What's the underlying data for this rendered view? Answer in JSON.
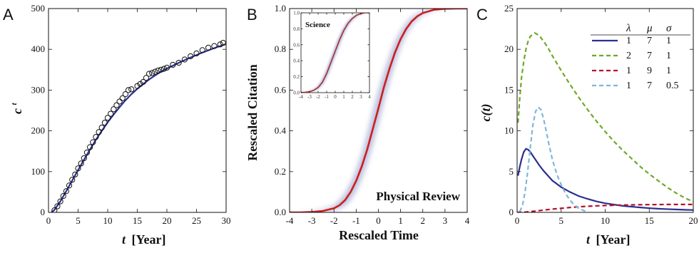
{
  "chart_data": [
    {
      "panel": "A",
      "type": "scatter",
      "xlabel": "t",
      "xlabel_unit": "[Year]",
      "ylabel": "c",
      "ylabel_superscript": "t",
      "xlim": [
        0,
        30
      ],
      "ylim": [
        0,
        500
      ],
      "xticks": [
        0,
        5,
        10,
        15,
        20,
        25,
        30
      ],
      "yticks": [
        0,
        100,
        200,
        300,
        400,
        500
      ],
      "series": [
        {
          "kind": "points",
          "color": "#111111",
          "x": [
            1,
            1.5,
            2,
            2.5,
            3,
            3.5,
            4,
            4.5,
            5,
            5.5,
            6,
            6.5,
            7,
            7.5,
            8,
            8.5,
            9,
            9.5,
            10,
            10.5,
            11,
            11.5,
            12,
            12.5,
            13,
            13.5,
            14,
            15,
            15.5,
            16,
            16.5,
            17,
            17.5,
            18,
            18.5,
            19,
            19.5,
            20,
            21,
            22,
            23,
            24,
            25,
            26,
            27,
            28,
            29,
            29.5
          ],
          "y": [
            5,
            15,
            27,
            40,
            52,
            66,
            80,
            93,
            108,
            120,
            133,
            147,
            160,
            172,
            185,
            197,
            208,
            220,
            232,
            242,
            253,
            263,
            272,
            280,
            290,
            300,
            302,
            310,
            315,
            320,
            330,
            340,
            342,
            345,
            348,
            350,
            352,
            355,
            362,
            367,
            375,
            383,
            390,
            398,
            404,
            408,
            412,
            416
          ]
        },
        {
          "kind": "fit",
          "color": "#2a2f8f",
          "x": [
            0.5,
            1,
            2,
            3,
            4,
            5,
            6,
            7,
            8,
            9,
            10,
            11,
            12,
            13,
            14,
            15,
            16,
            17,
            18,
            19,
            20,
            22,
            24,
            26,
            28,
            30
          ],
          "y": [
            0,
            6,
            27,
            52,
            78,
            104,
            129,
            154,
            178,
            200,
            221,
            240,
            258,
            275,
            290,
            303,
            315,
            326,
            336,
            345,
            353,
            367,
            380,
            392,
            403,
            413
          ]
        }
      ]
    },
    {
      "panel": "B",
      "type": "line",
      "xlabel": "Rescaled Time",
      "ylabel": "Rescaled Citation",
      "xlim": [
        -4,
        4
      ],
      "ylim": [
        0,
        1
      ],
      "xticks": [
        -4,
        -3,
        -2,
        -1,
        0,
        1,
        2,
        3,
        4
      ],
      "yticks": [
        0.0,
        0.2,
        0.4,
        0.6,
        0.8,
        1.0
      ],
      "annotation": "Physical Review",
      "series": [
        {
          "kind": "band",
          "color": "#8a93c8",
          "x": [
            -4,
            -3.5,
            -3,
            -2.5,
            -2,
            -1.75,
            -1.5,
            -1.25,
            -1,
            -0.75,
            -0.5,
            -0.25,
            0,
            0.25,
            0.5,
            0.75,
            1,
            1.25,
            1.5,
            1.75,
            2,
            2.5,
            3,
            3.5,
            4
          ],
          "y_low": [
            0,
            0,
            0,
            0.002,
            0.01,
            0.018,
            0.032,
            0.06,
            0.105,
            0.165,
            0.24,
            0.33,
            0.43,
            0.54,
            0.64,
            0.73,
            0.81,
            0.87,
            0.915,
            0.945,
            0.968,
            0.99,
            0.998,
            1,
            1
          ],
          "y_high": [
            0,
            0.001,
            0.005,
            0.015,
            0.035,
            0.06,
            0.095,
            0.145,
            0.21,
            0.29,
            0.39,
            0.5,
            0.6,
            0.69,
            0.77,
            0.84,
            0.89,
            0.93,
            0.958,
            0.975,
            0.988,
            0.997,
            1,
            1,
            1
          ]
        },
        {
          "kind": "curve",
          "color": "#cc1f1f",
          "x": [
            -4,
            -3.5,
            -3,
            -2.5,
            -2,
            -1.75,
            -1.5,
            -1.25,
            -1,
            -0.75,
            -0.5,
            -0.25,
            0,
            0.25,
            0.5,
            0.75,
            1,
            1.25,
            1.5,
            1.75,
            2,
            2.5,
            3,
            3.5,
            4
          ],
          "y": [
            0,
            0,
            0.002,
            0.007,
            0.02,
            0.035,
            0.06,
            0.1,
            0.155,
            0.225,
            0.31,
            0.41,
            0.51,
            0.615,
            0.705,
            0.785,
            0.85,
            0.9,
            0.937,
            0.962,
            0.978,
            0.994,
            0.999,
            1,
            1
          ]
        }
      ],
      "inset": {
        "annotation": "Science",
        "xlim": [
          -4,
          4
        ],
        "ylim": [
          0,
          1
        ],
        "xticks": [
          -4,
          -3,
          -2,
          -1,
          0,
          1,
          2,
          3,
          4
        ],
        "yticks": [
          0.0,
          0.2,
          0.4,
          0.6,
          0.8,
          1.0
        ],
        "band_color": "#8a93c8",
        "curve_color": "#a33030",
        "x": [
          -4,
          -3.5,
          -3,
          -2.5,
          -2,
          -1.5,
          -1,
          -0.5,
          0,
          0.5,
          1,
          1.5,
          2,
          2.5,
          3,
          3.5,
          4
        ],
        "y": [
          0.002,
          0.005,
          0.012,
          0.03,
          0.065,
          0.13,
          0.24,
          0.38,
          0.52,
          0.66,
          0.78,
          0.87,
          0.93,
          0.97,
          0.99,
          1,
          1
        ]
      }
    },
    {
      "panel": "C",
      "type": "line",
      "xlabel": "t",
      "xlabel_unit": "[Year]",
      "ylabel": "c(t)",
      "xlim": [
        0,
        20
      ],
      "ylim": [
        0,
        25
      ],
      "xticks": [
        0,
        5,
        10,
        15,
        20
      ],
      "yticks": [
        0,
        5,
        10,
        15,
        20,
        25
      ],
      "legend": {
        "position": "top-right",
        "headers": [
          "λ",
          "μ",
          "σ"
        ],
        "rows": [
          {
            "values": [
              "1",
              "7",
              "1"
            ],
            "color": "#2a2f8f",
            "dash": "solid"
          },
          {
            "values": [
              "2",
              "7",
              "1"
            ],
            "color": "#6ea82a",
            "dash": "dashed"
          },
          {
            "values": [
              "1",
              "9",
              "1"
            ],
            "color": "#b3122a",
            "dash": "dashed"
          },
          {
            "values": [
              "1",
              "7",
              "0.5"
            ],
            "color": "#7fb6d8",
            "dash": "dashed"
          }
        ]
      },
      "series": [
        {
          "lambda": 1,
          "mu": 7,
          "sigma": 1,
          "x": [
            0.1,
            0.3,
            0.5,
            0.75,
            1,
            1.25,
            1.5,
            2,
            2.5,
            3,
            3.5,
            4,
            5,
            6,
            7,
            8,
            9,
            10,
            11,
            12,
            13,
            14,
            15,
            16,
            17,
            18,
            19,
            20
          ],
          "y": [
            4.5,
            5.6,
            6.5,
            7.4,
            7.8,
            7.7,
            7.4,
            6.6,
            5.8,
            5.1,
            4.5,
            3.9,
            3.1,
            2.5,
            2.0,
            1.65,
            1.35,
            1.12,
            0.95,
            0.8,
            0.7,
            0.6,
            0.52,
            0.45,
            0.4,
            0.36,
            0.32,
            0.29
          ]
        },
        {
          "lambda": 2,
          "mu": 7,
          "sigma": 1,
          "x": [
            0.1,
            0.3,
            0.5,
            0.75,
            1,
            1.25,
            1.5,
            2,
            2.5,
            3,
            3.5,
            4,
            5,
            6,
            7,
            8,
            9,
            10,
            11,
            12,
            13,
            14,
            15,
            16,
            17,
            18,
            19,
            20
          ],
          "y": [
            11,
            14,
            16.5,
            18.5,
            20,
            21,
            21.6,
            22,
            21.7,
            21.0,
            20.2,
            19.2,
            17.4,
            15.7,
            14.1,
            12.6,
            11.2,
            9.9,
            8.7,
            7.6,
            6.6,
            5.6,
            4.7,
            3.9,
            3.1,
            2.4,
            1.8,
            1.3
          ]
        },
        {
          "lambda": 1,
          "mu": 9,
          "sigma": 1,
          "x": [
            0,
            1,
            2,
            3,
            4,
            5,
            6,
            7,
            8,
            9,
            10,
            11,
            12,
            13,
            14,
            15,
            16,
            17,
            18,
            19,
            20
          ],
          "y": [
            0,
            0.05,
            0.15,
            0.28,
            0.4,
            0.5,
            0.6,
            0.68,
            0.75,
            0.8,
            0.84,
            0.87,
            0.9,
            0.92,
            0.94,
            0.95,
            0.96,
            0.97,
            0.97,
            0.97,
            0.97
          ]
        },
        {
          "lambda": 1,
          "mu": 7,
          "sigma": 0.5,
          "x": [
            0.3,
            0.6,
            0.9,
            1.2,
            1.5,
            1.8,
            2.1,
            2.4,
            2.7,
            3,
            3.3,
            3.6,
            4,
            4.5,
            5,
            5.5,
            6,
            6.5,
            7,
            7.5,
            8
          ],
          "y": [
            0.1,
            0.8,
            2.5,
            5,
            8,
            10.8,
            12.4,
            12.9,
            12.6,
            11.5,
            10,
            8.4,
            6.5,
            4.7,
            3.4,
            2.3,
            1.5,
            0.9,
            0.5,
            0.25,
            0.05
          ]
        }
      ]
    }
  ]
}
